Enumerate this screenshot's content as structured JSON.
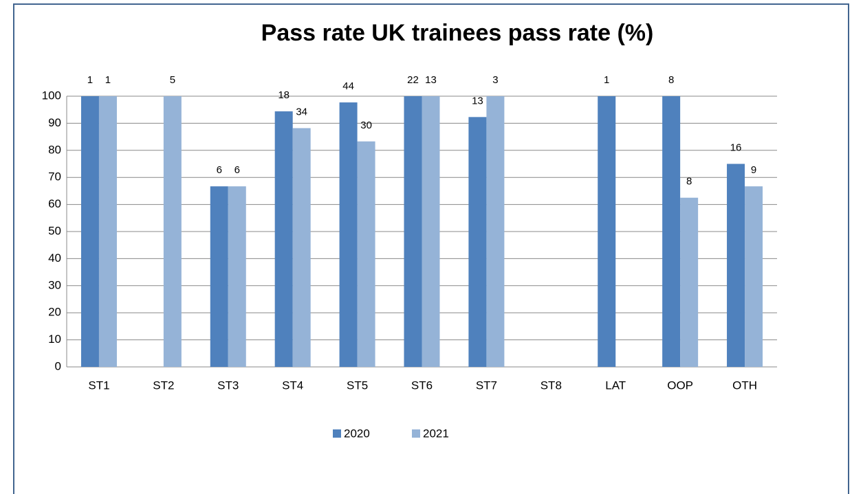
{
  "chart_data": {
    "type": "bar",
    "title": "Pass rate UK trainees pass rate (%)",
    "categories": [
      "ST1",
      "ST2",
      "ST3",
      "ST4",
      "ST5",
      "ST6",
      "ST7",
      "ST8",
      "LAT",
      "OOP",
      "OTH"
    ],
    "series": [
      {
        "name": "2020",
        "color": "#4f81bd",
        "values": [
          100,
          null,
          66.7,
          94.4,
          97.7,
          100,
          92.3,
          null,
          100,
          100,
          75
        ],
        "counts": [
          1,
          null,
          6,
          18,
          44,
          22,
          13,
          null,
          1,
          8,
          16
        ]
      },
      {
        "name": "2021",
        "color": "#95b3d7",
        "values": [
          100,
          100,
          66.7,
          88.2,
          83.3,
          100,
          100,
          null,
          null,
          62.5,
          66.7
        ],
        "counts": [
          1,
          5,
          6,
          34,
          30,
          13,
          3,
          null,
          null,
          8,
          9
        ]
      }
    ],
    "ylim": [
      0,
      100
    ],
    "yticks": [
      0,
      10,
      20,
      30,
      40,
      50,
      60,
      70,
      80,
      90,
      100
    ],
    "grid": true,
    "legend": "bottom"
  }
}
